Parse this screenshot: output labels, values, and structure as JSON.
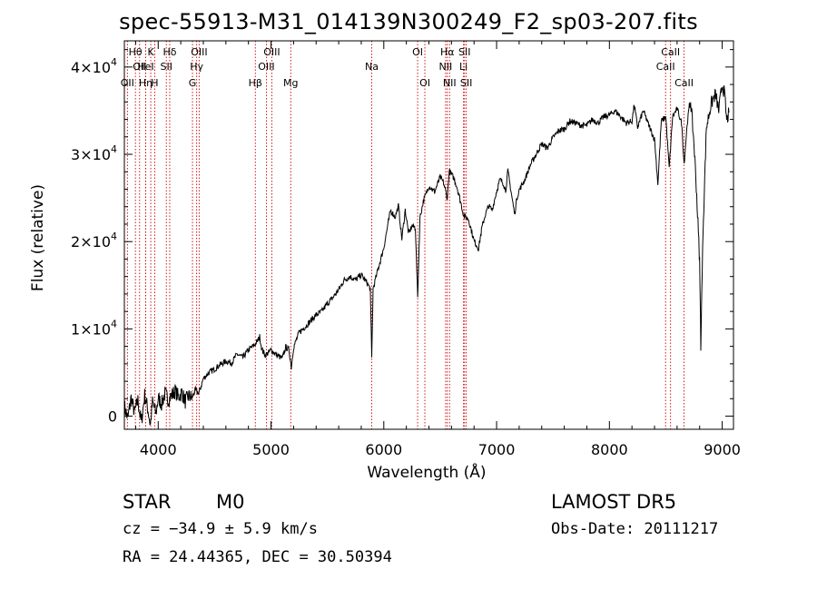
{
  "chart_data": {
    "type": "line",
    "title": "spec-55913-M31_014139N300249_F2_sp03-207.fits",
    "xlabel": "Wavelength (Å)",
    "ylabel": "Flux (relative)",
    "xlim": [
      3700,
      9100
    ],
    "ylim": [
      -1500,
      43000
    ],
    "x_ticks": [
      {
        "value": 4000,
        "label": "4000"
      },
      {
        "value": 5000,
        "label": "5000"
      },
      {
        "value": 6000,
        "label": "6000"
      },
      {
        "value": 7000,
        "label": "7000"
      },
      {
        "value": 8000,
        "label": "8000"
      },
      {
        "value": 9000,
        "label": "9000"
      }
    ],
    "y_ticks": [
      {
        "value": 0,
        "label": "0",
        "exp": ""
      },
      {
        "value": 10000,
        "label": "1×10",
        "exp": "4"
      },
      {
        "value": 20000,
        "label": "2×10",
        "exp": "4"
      },
      {
        "value": 30000,
        "label": "3×10",
        "exp": "4"
      },
      {
        "value": 40000,
        "label": "4×10",
        "exp": "4"
      }
    ],
    "series": [
      {
        "color": "#000000",
        "points": [
          [
            3700,
            1200
          ],
          [
            3730,
            -300
          ],
          [
            3760,
            2100
          ],
          [
            3790,
            400
          ],
          [
            3820,
            1800
          ],
          [
            3850,
            -800
          ],
          [
            3880,
            2400
          ],
          [
            3910,
            700
          ],
          [
            3930,
            -1000
          ],
          [
            3950,
            1600
          ],
          [
            3980,
            300
          ],
          [
            4000,
            2100
          ],
          [
            4030,
            1400
          ],
          [
            4060,
            2600
          ],
          [
            4090,
            1900
          ],
          [
            4120,
            2400
          ],
          [
            4150,
            2900
          ],
          [
            4180,
            2200
          ],
          [
            4210,
            2700
          ],
          [
            4240,
            1700
          ],
          [
            4270,
            2300
          ],
          [
            4300,
            2100
          ],
          [
            4330,
            3000
          ],
          [
            4360,
            2600
          ],
          [
            4400,
            4300
          ],
          [
            4450,
            5000
          ],
          [
            4500,
            5400
          ],
          [
            4550,
            5900
          ],
          [
            4600,
            6300
          ],
          [
            4650,
            6100
          ],
          [
            4700,
            7100
          ],
          [
            4750,
            6700
          ],
          [
            4800,
            7600
          ],
          [
            4850,
            8100
          ],
          [
            4880,
            8600
          ],
          [
            4900,
            9100
          ],
          [
            4920,
            7600
          ],
          [
            4950,
            7000
          ],
          [
            4980,
            7300
          ],
          [
            5000,
            7600
          ],
          [
            5050,
            7000
          ],
          [
            5100,
            6600
          ],
          [
            5130,
            7900
          ],
          [
            5160,
            7600
          ],
          [
            5180,
            5600
          ],
          [
            5200,
            7900
          ],
          [
            5250,
            9600
          ],
          [
            5300,
            10200
          ],
          [
            5350,
            10900
          ],
          [
            5400,
            11600
          ],
          [
            5450,
            12000
          ],
          [
            5500,
            12900
          ],
          [
            5550,
            13600
          ],
          [
            5600,
            14500
          ],
          [
            5650,
            15600
          ],
          [
            5700,
            16000
          ],
          [
            5750,
            15600
          ],
          [
            5800,
            16200
          ],
          [
            5850,
            15300
          ],
          [
            5880,
            14600
          ],
          [
            5893,
            6600
          ],
          [
            5905,
            14600
          ],
          [
            5950,
            16900
          ],
          [
            6000,
            19300
          ],
          [
            6030,
            21500
          ],
          [
            6060,
            23600
          ],
          [
            6100,
            22800
          ],
          [
            6130,
            24100
          ],
          [
            6160,
            20300
          ],
          [
            6190,
            23600
          ],
          [
            6220,
            20900
          ],
          [
            6250,
            21800
          ],
          [
            6280,
            21600
          ],
          [
            6300,
            13600
          ],
          [
            6320,
            22700
          ],
          [
            6350,
            24600
          ],
          [
            6400,
            26400
          ],
          [
            6450,
            25700
          ],
          [
            6500,
            27400
          ],
          [
            6530,
            26700
          ],
          [
            6563,
            25000
          ],
          [
            6580,
            28100
          ],
          [
            6620,
            27300
          ],
          [
            6650,
            26200
          ],
          [
            6680,
            24600
          ],
          [
            6710,
            22900
          ],
          [
            6750,
            22600
          ],
          [
            6800,
            20100
          ],
          [
            6840,
            19200
          ],
          [
            6870,
            21600
          ],
          [
            6900,
            23100
          ],
          [
            6930,
            24100
          ],
          [
            6960,
            23600
          ],
          [
            7000,
            25800
          ],
          [
            7030,
            27100
          ],
          [
            7060,
            26700
          ],
          [
            7080,
            25800
          ],
          [
            7100,
            28100
          ],
          [
            7130,
            25600
          ],
          [
            7160,
            23100
          ],
          [
            7180,
            25000
          ],
          [
            7200,
            25900
          ],
          [
            7250,
            27100
          ],
          [
            7300,
            28800
          ],
          [
            7350,
            30000
          ],
          [
            7400,
            31200
          ],
          [
            7450,
            30700
          ],
          [
            7500,
            31900
          ],
          [
            7550,
            32700
          ],
          [
            7600,
            32900
          ],
          [
            7650,
            33800
          ],
          [
            7700,
            33600
          ],
          [
            7750,
            33300
          ],
          [
            7800,
            33300
          ],
          [
            7850,
            34000
          ],
          [
            7900,
            33600
          ],
          [
            7950,
            34300
          ],
          [
            8000,
            34500
          ],
          [
            8050,
            35000
          ],
          [
            8100,
            34300
          ],
          [
            8150,
            33600
          ],
          [
            8200,
            33800
          ],
          [
            8220,
            35700
          ],
          [
            8250,
            33100
          ],
          [
            8300,
            35000
          ],
          [
            8350,
            33300
          ],
          [
            8400,
            31700
          ],
          [
            8430,
            26600
          ],
          [
            8460,
            33800
          ],
          [
            8500,
            34300
          ],
          [
            8530,
            28400
          ],
          [
            8560,
            34300
          ],
          [
            8600,
            35200
          ],
          [
            8640,
            33600
          ],
          [
            8662,
            28900
          ],
          [
            8690,
            33600
          ],
          [
            8720,
            36200
          ],
          [
            8750,
            31200
          ],
          [
            8770,
            26400
          ],
          [
            8800,
            17700
          ],
          [
            8810,
            8300
          ],
          [
            8830,
            21300
          ],
          [
            8860,
            33100
          ],
          [
            8900,
            35700
          ],
          [
            8940,
            36900
          ],
          [
            8970,
            35000
          ],
          [
            9000,
            38100
          ],
          [
            9020,
            36900
          ],
          [
            9040,
            33800
          ],
          [
            9060,
            34800
          ]
        ]
      }
    ],
    "lines": [
      {
        "wl": 3798,
        "label": "Hθ",
        "row": 1
      },
      {
        "wl": 3835,
        "label": "OII",
        "row": 2
      },
      {
        "wl": 3727,
        "label": "OII",
        "row": 3
      },
      {
        "wl": 3889,
        "label": "Hη",
        "row": 3
      },
      {
        "wl": 3889,
        "label": "HeI",
        "row": 2
      },
      {
        "wl": 3934,
        "label": "K",
        "row": 1
      },
      {
        "wl": 3969,
        "label": "H",
        "row": 3
      },
      {
        "wl": 4072,
        "label": "SII",
        "row": 2
      },
      {
        "wl": 4102,
        "label": "Hδ",
        "row": 1
      },
      {
        "wl": 4341,
        "label": "Hγ",
        "row": 2
      },
      {
        "wl": 4304,
        "label": "G",
        "row": 3
      },
      {
        "wl": 4363,
        "label": "OIII",
        "row": 1
      },
      {
        "wl": 4861,
        "label": "Hβ",
        "row": 3
      },
      {
        "wl": 4959,
        "label": "OIII",
        "row": 2
      },
      {
        "wl": 5007,
        "label": "OIII",
        "row": 1
      },
      {
        "wl": 5175,
        "label": "Mg",
        "row": 3
      },
      {
        "wl": 5893,
        "label": "Na",
        "row": 2
      },
      {
        "wl": 6300,
        "label": "OI",
        "row": 1
      },
      {
        "wl": 6364,
        "label": "OI",
        "row": 3
      },
      {
        "wl": 6548,
        "label": "NII",
        "row": 2
      },
      {
        "wl": 6563,
        "label": "Hα",
        "row": 1
      },
      {
        "wl": 6583,
        "label": "NII",
        "row": 3
      },
      {
        "wl": 6707,
        "label": "Li",
        "row": 2
      },
      {
        "wl": 6716,
        "label": "SII",
        "row": 1
      },
      {
        "wl": 6731,
        "label": "SII",
        "row": 3
      },
      {
        "wl": 8498,
        "label": "CaII",
        "row": 2
      },
      {
        "wl": 8542,
        "label": "CaII",
        "row": 1
      },
      {
        "wl": 8662,
        "label": "CaII",
        "row": 3
      }
    ]
  },
  "info": {
    "class": "STAR",
    "subclass": "M0",
    "survey": "LAMOST DR5",
    "cz": "cz = −34.9 ± 5.9 km/s",
    "obs_date": "Obs-Date: 20111217",
    "radec": "RA =  24.44365, DEC =  30.50394"
  }
}
